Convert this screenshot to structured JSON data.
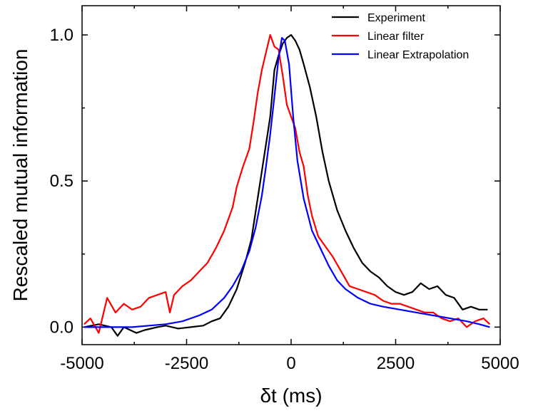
{
  "chart_data": {
    "type": "line",
    "xlabel": "δt (ms)",
    "ylabel": "Rescaled mutual information",
    "xlim": [
      -5000,
      5000
    ],
    "ylim": [
      -0.06,
      1.1
    ],
    "x_ticks": [
      -5000,
      -2500,
      0,
      2500,
      5000
    ],
    "x_tick_labels": [
      "-5000",
      "-2500",
      "0",
      "2500",
      "5000"
    ],
    "y_ticks": [
      0.0,
      0.5,
      1.0
    ],
    "y_tick_labels": [
      "0.0",
      "0.5",
      "1.0"
    ],
    "grid": false,
    "legend_position": "top-right",
    "series": [
      {
        "name": "Experiment",
        "color": "#000000",
        "points": [
          [
            -4950,
            0.0
          ],
          [
            -4600,
            0.01
          ],
          [
            -4300,
            0.0
          ],
          [
            -4150,
            -0.03
          ],
          [
            -4000,
            0.0
          ],
          [
            -3700,
            -0.02
          ],
          [
            -3500,
            -0.01
          ],
          [
            -3200,
            0.0
          ],
          [
            -3000,
            0.005
          ],
          [
            -2700,
            -0.005
          ],
          [
            -2400,
            0.0
          ],
          [
            -2100,
            0.005
          ],
          [
            -1900,
            0.02
          ],
          [
            -1700,
            0.03
          ],
          [
            -1500,
            0.07
          ],
          [
            -1300,
            0.13
          ],
          [
            -1100,
            0.22
          ],
          [
            -950,
            0.3
          ],
          [
            -800,
            0.44
          ],
          [
            -650,
            0.58
          ],
          [
            -500,
            0.72
          ],
          [
            -400,
            0.88
          ],
          [
            -300,
            0.93
          ],
          [
            -200,
            0.97
          ],
          [
            -100,
            0.99
          ],
          [
            0,
            1.0
          ],
          [
            100,
            0.98
          ],
          [
            200,
            0.95
          ],
          [
            300,
            0.9
          ],
          [
            450,
            0.82
          ],
          [
            600,
            0.72
          ],
          [
            750,
            0.6
          ],
          [
            900,
            0.5
          ],
          [
            1100,
            0.4
          ],
          [
            1300,
            0.33
          ],
          [
            1500,
            0.27
          ],
          [
            1700,
            0.22
          ],
          [
            1900,
            0.19
          ],
          [
            2100,
            0.17
          ],
          [
            2300,
            0.14
          ],
          [
            2500,
            0.12
          ],
          [
            2700,
            0.11
          ],
          [
            2900,
            0.12
          ],
          [
            3100,
            0.15
          ],
          [
            3300,
            0.13
          ],
          [
            3500,
            0.14
          ],
          [
            3700,
            0.11
          ],
          [
            3900,
            0.1
          ],
          [
            4100,
            0.06
          ],
          [
            4300,
            0.07
          ],
          [
            4500,
            0.06
          ],
          [
            4700,
            0.06
          ]
        ]
      },
      {
        "name": "Linear filter",
        "color": "#ff0000",
        "points": [
          [
            -4950,
            0.01
          ],
          [
            -4800,
            0.03
          ],
          [
            -4600,
            -0.02
          ],
          [
            -4500,
            0.04
          ],
          [
            -4400,
            0.1
          ],
          [
            -4200,
            0.05
          ],
          [
            -4000,
            0.08
          ],
          [
            -3800,
            0.06
          ],
          [
            -3600,
            0.07
          ],
          [
            -3400,
            0.1
          ],
          [
            -3200,
            0.11
          ],
          [
            -3000,
            0.12
          ],
          [
            -2900,
            0.05
          ],
          [
            -2800,
            0.11
          ],
          [
            -2600,
            0.14
          ],
          [
            -2400,
            0.16
          ],
          [
            -2200,
            0.19
          ],
          [
            -2000,
            0.22
          ],
          [
            -1800,
            0.27
          ],
          [
            -1600,
            0.33
          ],
          [
            -1400,
            0.41
          ],
          [
            -1300,
            0.48
          ],
          [
            -1150,
            0.55
          ],
          [
            -1000,
            0.61
          ],
          [
            -900,
            0.7
          ],
          [
            -800,
            0.8
          ],
          [
            -700,
            0.88
          ],
          [
            -600,
            0.94
          ],
          [
            -500,
            1.0
          ],
          [
            -400,
            0.96
          ],
          [
            -300,
            0.95
          ],
          [
            -200,
            0.86
          ],
          [
            -100,
            0.76
          ],
          [
            0,
            0.72
          ],
          [
            100,
            0.68
          ],
          [
            200,
            0.6
          ],
          [
            300,
            0.55
          ],
          [
            400,
            0.45
          ],
          [
            500,
            0.38
          ],
          [
            650,
            0.31
          ],
          [
            800,
            0.28
          ],
          [
            1000,
            0.24
          ],
          [
            1200,
            0.19
          ],
          [
            1400,
            0.14
          ],
          [
            1600,
            0.13
          ],
          [
            1800,
            0.12
          ],
          [
            2000,
            0.11
          ],
          [
            2200,
            0.09
          ],
          [
            2400,
            0.08
          ],
          [
            2600,
            0.08
          ],
          [
            2800,
            0.07
          ],
          [
            3000,
            0.06
          ],
          [
            3200,
            0.05
          ],
          [
            3400,
            0.05
          ],
          [
            3600,
            0.03
          ],
          [
            3800,
            0.02
          ],
          [
            4000,
            0.03
          ],
          [
            4200,
            0.0
          ],
          [
            4400,
            0.02
          ],
          [
            4600,
            0.03
          ],
          [
            4750,
            0.01
          ]
        ]
      },
      {
        "name": "Linear Extrapolation",
        "color": "#0000ff",
        "points": [
          [
            -4950,
            0.0
          ],
          [
            -4600,
            0.0
          ],
          [
            -4200,
            0.0
          ],
          [
            -3800,
            0.0
          ],
          [
            -3400,
            0.005
          ],
          [
            -3000,
            0.01
          ],
          [
            -2600,
            0.02
          ],
          [
            -2200,
            0.04
          ],
          [
            -1900,
            0.06
          ],
          [
            -1600,
            0.1
          ],
          [
            -1400,
            0.14
          ],
          [
            -1200,
            0.19
          ],
          [
            -1000,
            0.26
          ],
          [
            -850,
            0.34
          ],
          [
            -700,
            0.45
          ],
          [
            -600,
            0.55
          ],
          [
            -500,
            0.66
          ],
          [
            -400,
            0.79
          ],
          [
            -300,
            0.92
          ],
          [
            -220,
            0.99
          ],
          [
            -150,
            0.98
          ],
          [
            -50,
            0.9
          ],
          [
            50,
            0.72
          ],
          [
            150,
            0.57
          ],
          [
            300,
            0.44
          ],
          [
            500,
            0.33
          ],
          [
            700,
            0.27
          ],
          [
            900,
            0.21
          ],
          [
            1100,
            0.16
          ],
          [
            1300,
            0.13
          ],
          [
            1600,
            0.1
          ],
          [
            1900,
            0.08
          ],
          [
            2200,
            0.07
          ],
          [
            2600,
            0.06
          ],
          [
            3000,
            0.05
          ],
          [
            3400,
            0.04
          ],
          [
            3800,
            0.03
          ],
          [
            4200,
            0.02
          ],
          [
            4500,
            0.01
          ],
          [
            4750,
            0.0
          ]
        ]
      }
    ]
  }
}
